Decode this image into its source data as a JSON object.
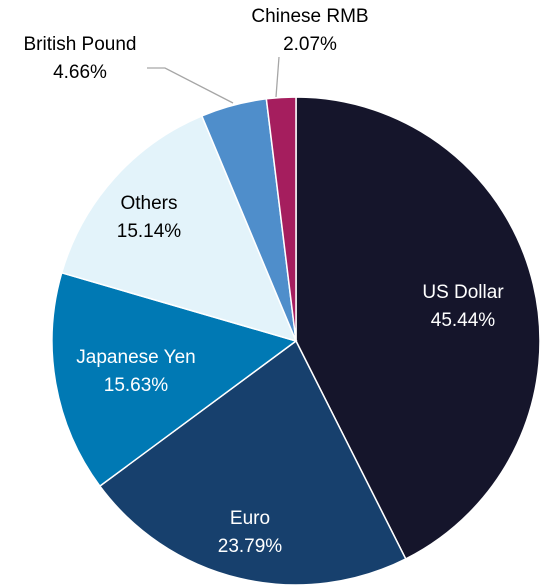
{
  "chart_data": {
    "type": "pie",
    "categories": [
      "US Dollar",
      "Euro",
      "Japanese Yen",
      "Others",
      "British Pound",
      "Chinese RMB"
    ],
    "values": [
      45.44,
      23.79,
      15.63,
      15.14,
      4.66,
      2.07
    ],
    "value_labels": [
      "45.44%",
      "23.79%",
      "15.63%",
      "15.14%",
      "4.66%",
      "2.07%"
    ],
    "colors": [
      "#15152b",
      "#17406d",
      "#0079b4",
      "#e3f3fa",
      "#4f8ecb",
      "#a51e5e"
    ]
  }
}
